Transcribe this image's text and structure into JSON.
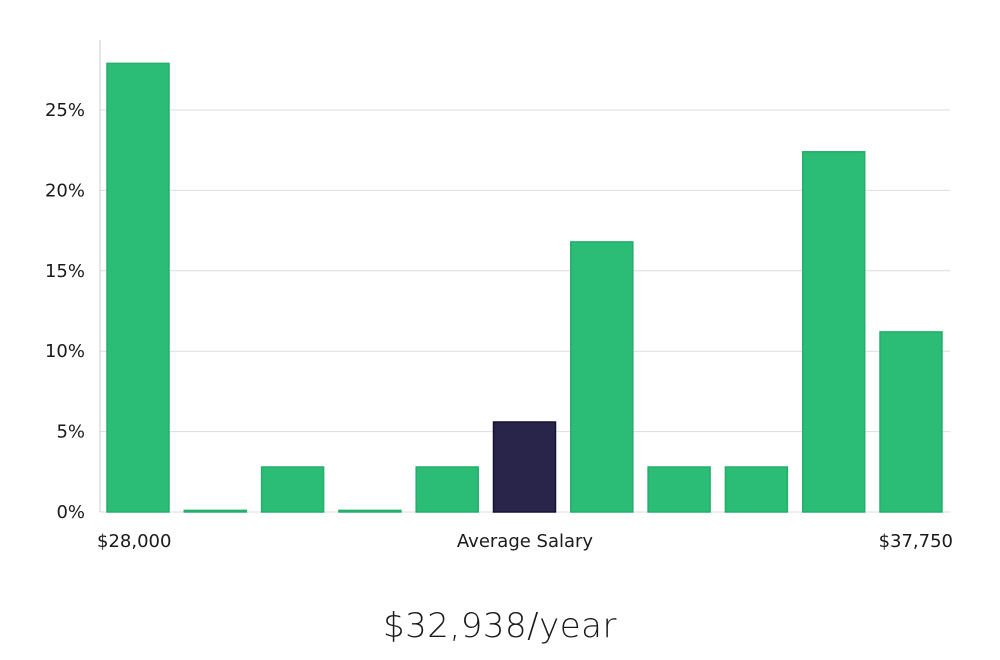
{
  "chart_data": {
    "type": "bar",
    "title": "",
    "xlabel": "Average Salary",
    "ylabel": "",
    "range_min_label": "$28,000",
    "range_max_label": "$37,750",
    "ylim": [
      0,
      29
    ],
    "yticks": [
      0,
      5,
      10,
      15,
      20,
      25
    ],
    "ytick_labels": [
      "0%",
      "5%",
      "10%",
      "15%",
      "20%",
      "25%"
    ],
    "grid": true,
    "highlight_index": 5,
    "values": [
      27.9,
      0.1,
      2.8,
      0.1,
      2.8,
      5.6,
      16.8,
      2.8,
      2.8,
      22.4,
      11.2
    ],
    "colors": {
      "bar": "#2bbd76",
      "bar_stroke": "#25ad6b",
      "highlight": "#28244a",
      "highlight_stroke": "#151230",
      "grid": "#dddddd",
      "axis": "#cccccc"
    }
  },
  "average_salary": "$32,938/year"
}
